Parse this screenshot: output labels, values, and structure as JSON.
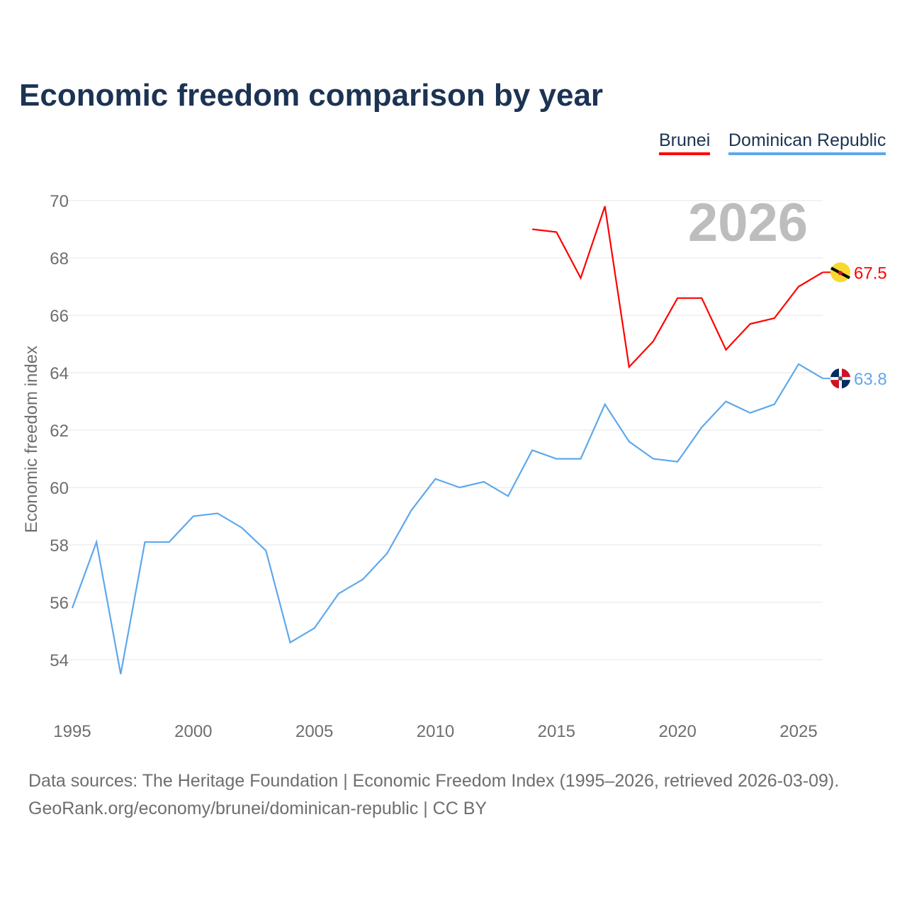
{
  "title": "Economic freedom comparison by year",
  "legend": [
    {
      "label": "Brunei",
      "color": "#ff0000"
    },
    {
      "label": "Dominican Republic",
      "color": "#5ea8ec"
    }
  ],
  "footer": {
    "line1": "Data sources: The Heritage Foundation | Economic Freedom Index (1995–2026, retrieved 2026-03-09).",
    "line2": "GeoRank.org/economy/brunei/dominican-republic | CC BY"
  },
  "chart_data": {
    "type": "line",
    "title": "Economic freedom comparison by year",
    "ylabel": "Economic freedom index",
    "xlabel": "",
    "year_label": "2026",
    "xlim": [
      1995,
      2026
    ],
    "ylim": [
      52,
      70.5
    ],
    "yticks": [
      54,
      56,
      58,
      60,
      62,
      64,
      66,
      68,
      70
    ],
    "xticks": [
      1995,
      2000,
      2005,
      2010,
      2015,
      2020,
      2025
    ],
    "grid": true,
    "legend_position": "top-right",
    "series": [
      {
        "name": "Brunei",
        "color": "#ff0000",
        "end_label": "67.5",
        "x": [
          2014,
          2015,
          2016,
          2017,
          2018,
          2019,
          2020,
          2021,
          2022,
          2023,
          2024,
          2025,
          2026
        ],
        "values": [
          69.0,
          68.9,
          67.3,
          69.8,
          64.2,
          65.1,
          66.6,
          66.6,
          64.8,
          65.7,
          65.9,
          67.0,
          67.5
        ]
      },
      {
        "name": "Dominican Republic",
        "color": "#5ea8ec",
        "end_label": "63.8",
        "x": [
          1995,
          1996,
          1997,
          1998,
          1999,
          2000,
          2001,
          2002,
          2003,
          2004,
          2005,
          2006,
          2007,
          2008,
          2009,
          2010,
          2011,
          2012,
          2013,
          2014,
          2015,
          2016,
          2017,
          2018,
          2019,
          2020,
          2021,
          2022,
          2023,
          2024,
          2025,
          2026
        ],
        "values": [
          55.8,
          58.1,
          53.5,
          58.1,
          58.1,
          59.0,
          59.1,
          58.6,
          57.8,
          54.6,
          55.1,
          56.3,
          56.8,
          57.7,
          59.2,
          60.3,
          60.0,
          60.2,
          59.7,
          61.3,
          61.0,
          61.0,
          62.9,
          61.6,
          61.0,
          60.9,
          62.1,
          63.0,
          62.6,
          62.9,
          64.3,
          63.8
        ]
      }
    ]
  }
}
